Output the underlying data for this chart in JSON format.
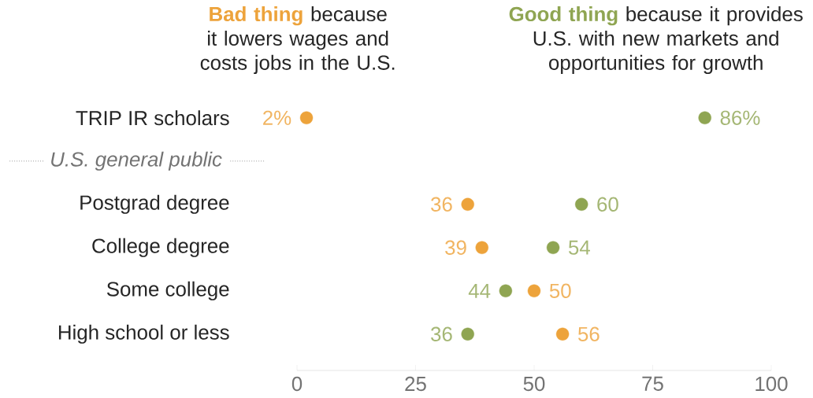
{
  "chart_data": {
    "type": "scatter",
    "orientation": "horizontal",
    "legend": "top",
    "marker": "circle",
    "categories": [
      "TRIP IR scholars",
      null,
      "Postgrad degree",
      "College degree",
      "Some college",
      "High school or less"
    ],
    "annotations": [
      "U.S. general public"
    ],
    "xlim": [
      0,
      100
    ],
    "xticks": [
      0,
      25,
      50,
      75,
      100
    ],
    "series": [
      {
        "name": "**Bad thing** because it lowers wages and costs jobs in the U.S.",
        "color": "#eda33b",
        "values": [
          2,
          null,
          36,
          39,
          50,
          56
        ],
        "value_labels": [
          "2%",
          null,
          "36",
          "39",
          "50",
          "56"
        ]
      },
      {
        "name": "**Good thing** because it provides U.S. with new markets and opportunities for growth",
        "color": "#8fa552",
        "values": [
          86,
          null,
          60,
          54,
          44,
          36
        ],
        "value_labels": [
          "86%",
          null,
          "60",
          "54",
          "44",
          "36"
        ]
      }
    ]
  }
}
